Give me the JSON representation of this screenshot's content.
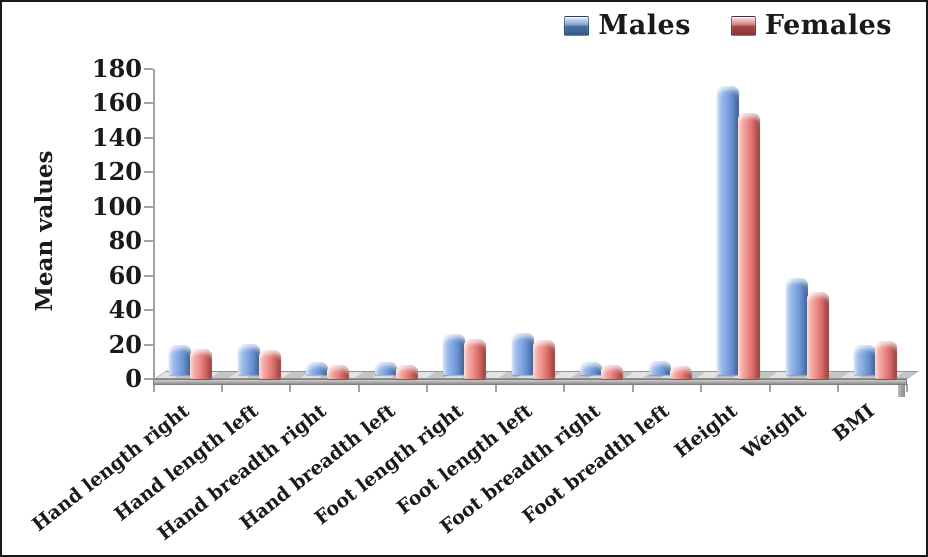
{
  "figure": {
    "background": "#ffffff",
    "border_color": "#1a1a1a",
    "axis_color": "#a3a3a3",
    "text_color": "#1a1a1a"
  },
  "chart_data": {
    "type": "bar",
    "title": "",
    "xlabel": "",
    "ylabel": "Mean values",
    "ylim": [
      0,
      180
    ],
    "ytick_step": 20,
    "yticks": [
      180,
      160,
      140,
      120,
      100,
      80,
      60,
      40,
      20,
      0
    ],
    "grid": false,
    "legend_position": "top-right",
    "effect": "3d-glossy-excel",
    "categories": [
      "Hand length right",
      "Hand length left",
      "Hand breadth right",
      "Hand breadth left",
      "Foot length right",
      "Foot length left",
      "Foot breadth right",
      "Foot breadth left",
      "Height",
      "Weight",
      "BMI"
    ],
    "series": [
      {
        "name": "Males",
        "color": "#4f81bd",
        "bar_gradient": [
          "#b5cdf1",
          "#85abe4",
          "#6b95d6",
          "#4a72ad"
        ],
        "values": [
          20,
          20.5,
          10,
          10,
          26,
          26.5,
          10,
          10.5,
          170,
          58.5,
          20
        ]
      },
      {
        "name": "Females",
        "color": "#c0504d",
        "bar_gradient": [
          "#f8c3bd",
          "#ef928e",
          "#e0716d",
          "#b14a47"
        ],
        "values": [
          18,
          17.5,
          8.5,
          8.5,
          24,
          23.5,
          8.5,
          8,
          155,
          51,
          22.5
        ]
      }
    ]
  }
}
